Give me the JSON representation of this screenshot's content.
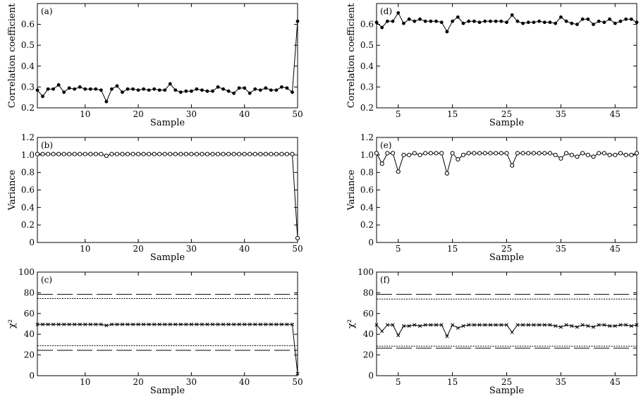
{
  "chart_data": [
    {
      "id": "a",
      "type": "line",
      "panel_label": "(a)",
      "marker": "filled-circle",
      "xlabel": "Sample",
      "ylabel": "Correlation coefficient",
      "xlim": [
        1,
        50
      ],
      "ylim": [
        0.2,
        0.7
      ],
      "xticks": [
        10,
        20,
        30,
        40,
        50
      ],
      "yticks": [
        0.2,
        0.3,
        0.4,
        0.5,
        0.6
      ],
      "xtick_labels": [
        "10",
        "20",
        "30",
        "40",
        "50"
      ],
      "ytick_labels": [
        "0.2",
        "0.3",
        "0.4",
        "0.5",
        "0.6"
      ],
      "x": [
        1,
        2,
        3,
        4,
        5,
        6,
        7,
        8,
        9,
        10,
        11,
        12,
        13,
        14,
        15,
        16,
        17,
        18,
        19,
        20,
        21,
        22,
        23,
        24,
        25,
        26,
        27,
        28,
        29,
        30,
        31,
        32,
        33,
        34,
        35,
        36,
        37,
        38,
        39,
        40,
        41,
        42,
        43,
        44,
        45,
        46,
        47,
        48,
        49,
        50
      ],
      "values": [
        0.285,
        0.255,
        0.29,
        0.29,
        0.31,
        0.275,
        0.295,
        0.29,
        0.3,
        0.29,
        0.29,
        0.29,
        0.285,
        0.23,
        0.29,
        0.305,
        0.275,
        0.29,
        0.29,
        0.285,
        0.29,
        0.285,
        0.29,
        0.285,
        0.285,
        0.315,
        0.285,
        0.275,
        0.28,
        0.28,
        0.29,
        0.285,
        0.28,
        0.28,
        0.3,
        0.29,
        0.28,
        0.27,
        0.295,
        0.295,
        0.27,
        0.29,
        0.285,
        0.295,
        0.285,
        0.285,
        0.3,
        0.295,
        0.275,
        0.615
      ],
      "hlines": []
    },
    {
      "id": "b",
      "type": "line",
      "panel_label": "(b)",
      "marker": "open-circle",
      "xlabel": "Sample",
      "ylabel": "Variance",
      "xlim": [
        1,
        50
      ],
      "ylim": [
        0,
        1.2
      ],
      "xticks": [
        10,
        20,
        30,
        40,
        50
      ],
      "yticks": [
        0,
        0.2,
        0.4,
        0.6,
        0.8,
        1.0,
        1.2
      ],
      "xtick_labels": [
        "10",
        "20",
        "30",
        "40",
        "50"
      ],
      "ytick_labels": [
        "0",
        "0.2",
        "0.4",
        "0.6",
        "0.8",
        "1.0",
        "1.2"
      ],
      "x": [
        1,
        2,
        3,
        4,
        5,
        6,
        7,
        8,
        9,
        10,
        11,
        12,
        13,
        14,
        15,
        16,
        17,
        18,
        19,
        20,
        21,
        22,
        23,
        24,
        25,
        26,
        27,
        28,
        29,
        30,
        31,
        32,
        33,
        34,
        35,
        36,
        37,
        38,
        39,
        40,
        41,
        42,
        43,
        44,
        45,
        46,
        47,
        48,
        49,
        50
      ],
      "values": [
        1.01,
        1.01,
        1.01,
        1.01,
        1.01,
        1.01,
        1.01,
        1.01,
        1.01,
        1.01,
        1.01,
        1.01,
        1.01,
        0.99,
        1.01,
        1.01,
        1.01,
        1.01,
        1.01,
        1.01,
        1.01,
        1.01,
        1.01,
        1.01,
        1.01,
        1.01,
        1.01,
        1.01,
        1.01,
        1.01,
        1.01,
        1.01,
        1.01,
        1.01,
        1.01,
        1.01,
        1.01,
        1.01,
        1.01,
        1.01,
        1.01,
        1.01,
        1.01,
        1.01,
        1.01,
        1.01,
        1.01,
        1.01,
        1.01,
        0.05
      ],
      "hlines": []
    },
    {
      "id": "c",
      "type": "line",
      "panel_label": "(c)",
      "marker": "cross",
      "xlabel": "Sample",
      "ylabel": "χ²",
      "xlim": [
        1,
        50
      ],
      "ylim": [
        0,
        100
      ],
      "xticks": [
        10,
        20,
        30,
        40,
        50
      ],
      "yticks": [
        0,
        20,
        40,
        60,
        80,
        100
      ],
      "xtick_labels": [
        "10",
        "20",
        "30",
        "40",
        "50"
      ],
      "ytick_labels": [
        "0",
        "20",
        "40",
        "60",
        "80",
        "100"
      ],
      "x": [
        1,
        2,
        3,
        4,
        5,
        6,
        7,
        8,
        9,
        10,
        11,
        12,
        13,
        14,
        15,
        16,
        17,
        18,
        19,
        20,
        21,
        22,
        23,
        24,
        25,
        26,
        27,
        28,
        29,
        30,
        31,
        32,
        33,
        34,
        35,
        36,
        37,
        38,
        39,
        40,
        41,
        42,
        43,
        44,
        45,
        46,
        47,
        48,
        49,
        50
      ],
      "values": [
        49.5,
        49.5,
        49.5,
        49.5,
        49.5,
        49.5,
        49.5,
        49.5,
        49.5,
        49.5,
        49.5,
        49.5,
        49.5,
        48.5,
        49.5,
        49.5,
        49.5,
        49.5,
        49.5,
        49.5,
        49.5,
        49.5,
        49.5,
        49.5,
        49.5,
        49.5,
        49.5,
        49.5,
        49.5,
        49.5,
        49.5,
        49.5,
        49.5,
        49.5,
        49.5,
        49.5,
        49.5,
        49.5,
        49.5,
        49.5,
        49.5,
        49.5,
        49.5,
        49.5,
        49.5,
        49.5,
        49.5,
        49.5,
        49.5,
        2
      ],
      "hlines": [
        {
          "y": 78.5,
          "style": "dashed"
        },
        {
          "y": 74.5,
          "style": "dotted"
        },
        {
          "y": 29.0,
          "style": "dotted"
        },
        {
          "y": 24.5,
          "style": "dashed"
        }
      ]
    },
    {
      "id": "d",
      "type": "line",
      "panel_label": "(d)",
      "marker": "filled-circle",
      "xlabel": "Sample",
      "ylabel": "Correlation coefficient",
      "xlim": [
        1,
        49
      ],
      "ylim": [
        0.2,
        0.7
      ],
      "xticks": [
        5,
        15,
        25,
        35,
        45
      ],
      "yticks": [
        0.2,
        0.3,
        0.4,
        0.5,
        0.6
      ],
      "xtick_labels": [
        "5",
        "15",
        "25",
        "35",
        "45"
      ],
      "ytick_labels": [
        "0.2",
        "0.3",
        "0.4",
        "0.5",
        "0.6"
      ],
      "x": [
        1,
        2,
        3,
        4,
        5,
        6,
        7,
        8,
        9,
        10,
        11,
        12,
        13,
        14,
        15,
        16,
        17,
        18,
        19,
        20,
        21,
        22,
        23,
        24,
        25,
        26,
        27,
        28,
        29,
        30,
        31,
        32,
        33,
        34,
        35,
        36,
        37,
        38,
        39,
        40,
        41,
        42,
        43,
        44,
        45,
        46,
        47,
        48,
        49
      ],
      "values": [
        0.61,
        0.585,
        0.615,
        0.615,
        0.655,
        0.605,
        0.625,
        0.615,
        0.625,
        0.615,
        0.615,
        0.615,
        0.61,
        0.565,
        0.615,
        0.635,
        0.605,
        0.615,
        0.615,
        0.61,
        0.615,
        0.615,
        0.615,
        0.615,
        0.61,
        0.645,
        0.615,
        0.605,
        0.61,
        0.61,
        0.615,
        0.61,
        0.61,
        0.605,
        0.635,
        0.615,
        0.605,
        0.6,
        0.625,
        0.625,
        0.6,
        0.615,
        0.61,
        0.625,
        0.605,
        0.615,
        0.625,
        0.625,
        0.61
      ],
      "hlines": []
    },
    {
      "id": "e",
      "type": "line",
      "panel_label": "(e)",
      "marker": "open-circle",
      "xlabel": "Sample",
      "ylabel": "Variance",
      "xlim": [
        1,
        49
      ],
      "ylim": [
        0,
        1.2
      ],
      "xticks": [
        5,
        15,
        25,
        35,
        45
      ],
      "yticks": [
        0,
        0.2,
        0.4,
        0.6,
        0.8,
        1.0,
        1.2
      ],
      "xtick_labels": [
        "5",
        "15",
        "25",
        "35",
        "45"
      ],
      "ytick_labels": [
        "0",
        "0.2",
        "0.4",
        "0.6",
        "0.8",
        "1.0",
        "1.2"
      ],
      "x": [
        1,
        2,
        3,
        4,
        5,
        6,
        7,
        8,
        9,
        10,
        11,
        12,
        13,
        14,
        15,
        16,
        17,
        18,
        19,
        20,
        21,
        22,
        23,
        24,
        25,
        26,
        27,
        28,
        29,
        30,
        31,
        32,
        33,
        34,
        35,
        36,
        37,
        38,
        39,
        40,
        41,
        42,
        43,
        44,
        45,
        46,
        47,
        48,
        49
      ],
      "values": [
        1.02,
        0.9,
        1.02,
        1.02,
        0.81,
        1.0,
        1.0,
        1.02,
        1.0,
        1.02,
        1.02,
        1.02,
        1.02,
        0.79,
        1.02,
        0.95,
        1.0,
        1.02,
        1.02,
        1.02,
        1.02,
        1.02,
        1.02,
        1.02,
        1.02,
        0.88,
        1.02,
        1.02,
        1.02,
        1.02,
        1.02,
        1.02,
        1.02,
        1.0,
        0.96,
        1.02,
        1.0,
        0.98,
        1.02,
        1.0,
        0.98,
        1.02,
        1.02,
        1.0,
        1.0,
        1.02,
        1.0,
        1.0,
        1.02
      ],
      "hlines": []
    },
    {
      "id": "f",
      "type": "line",
      "panel_label": "(f)",
      "marker": "cross",
      "xlabel": "Sample",
      "ylabel": "χ²",
      "xlim": [
        1,
        49
      ],
      "ylim": [
        0,
        100
      ],
      "xticks": [
        5,
        15,
        25,
        35,
        45
      ],
      "yticks": [
        0,
        20,
        40,
        60,
        80,
        100
      ],
      "xtick_labels": [
        "5",
        "15",
        "25",
        "35",
        "45"
      ],
      "ytick_labels": [
        "0",
        "20",
        "40",
        "60",
        "80",
        "100"
      ],
      "x": [
        1,
        2,
        3,
        4,
        5,
        6,
        7,
        8,
        9,
        10,
        11,
        12,
        13,
        14,
        15,
        16,
        17,
        18,
        19,
        20,
        21,
        22,
        23,
        24,
        25,
        26,
        27,
        28,
        29,
        30,
        31,
        32,
        33,
        34,
        35,
        36,
        37,
        38,
        39,
        40,
        41,
        42,
        43,
        44,
        45,
        46,
        47,
        48,
        49
      ],
      "values": [
        49,
        43,
        49,
        49,
        39,
        48,
        48,
        49,
        48,
        49,
        49,
        49,
        49,
        38,
        49,
        46,
        48,
        49,
        49,
        49,
        49,
        49,
        49,
        49,
        49,
        42,
        49,
        49,
        49,
        49,
        49,
        49,
        49,
        48,
        47,
        49,
        48,
        47,
        49,
        48,
        47,
        49,
        49,
        48,
        48,
        49,
        49,
        48,
        49
      ],
      "hlines": [
        {
          "y": 78.5,
          "style": "dashed"
        },
        {
          "y": 74.0,
          "style": "dotted"
        },
        {
          "y": 28.5,
          "style": "dotted"
        },
        {
          "y": 26.5,
          "style": "dashed"
        }
      ]
    }
  ]
}
